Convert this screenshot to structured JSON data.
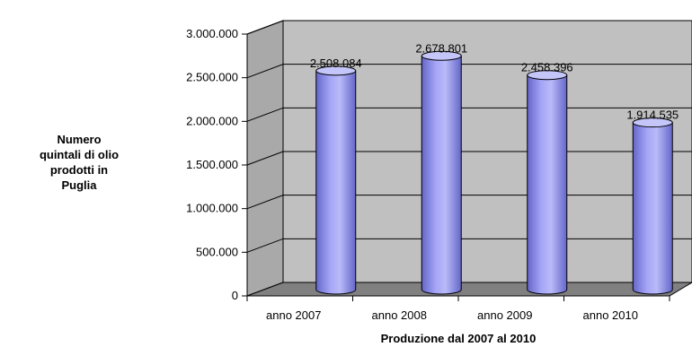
{
  "chart_data": {
    "type": "bar",
    "title": "",
    "xlabel": "Produzione dal 2007 al 2010",
    "ylabel_lines": [
      "Numero",
      "quintali di olio",
      "prodotti in",
      "Puglia"
    ],
    "categories": [
      "anno 2007",
      "anno 2008",
      "anno 2009",
      "anno 2010"
    ],
    "values": [
      2508084,
      2678801,
      2458396,
      1914535
    ],
    "data_labels": [
      "2.508.084",
      "2.678.801",
      "2.458.396",
      "1.914.535"
    ],
    "ylim": [
      0,
      3000000
    ],
    "yticks": [
      0,
      500000,
      1000000,
      1500000,
      2000000,
      2500000,
      3000000
    ],
    "ytick_labels": [
      "0",
      "500.000",
      "1.000.000",
      "1.500.000",
      "2.000.000",
      "2.500.000",
      "3.000.000"
    ],
    "grid": true,
    "legend": "none",
    "colors": {
      "bar_fill": "#9b9cf3",
      "bar_dark": "#6466c9",
      "bar_top": "#c4c5f8",
      "wall": "#c0c0c0",
      "side_wall": "#a9a9a9",
      "floor": "#808080",
      "gridline": "#000000"
    }
  }
}
